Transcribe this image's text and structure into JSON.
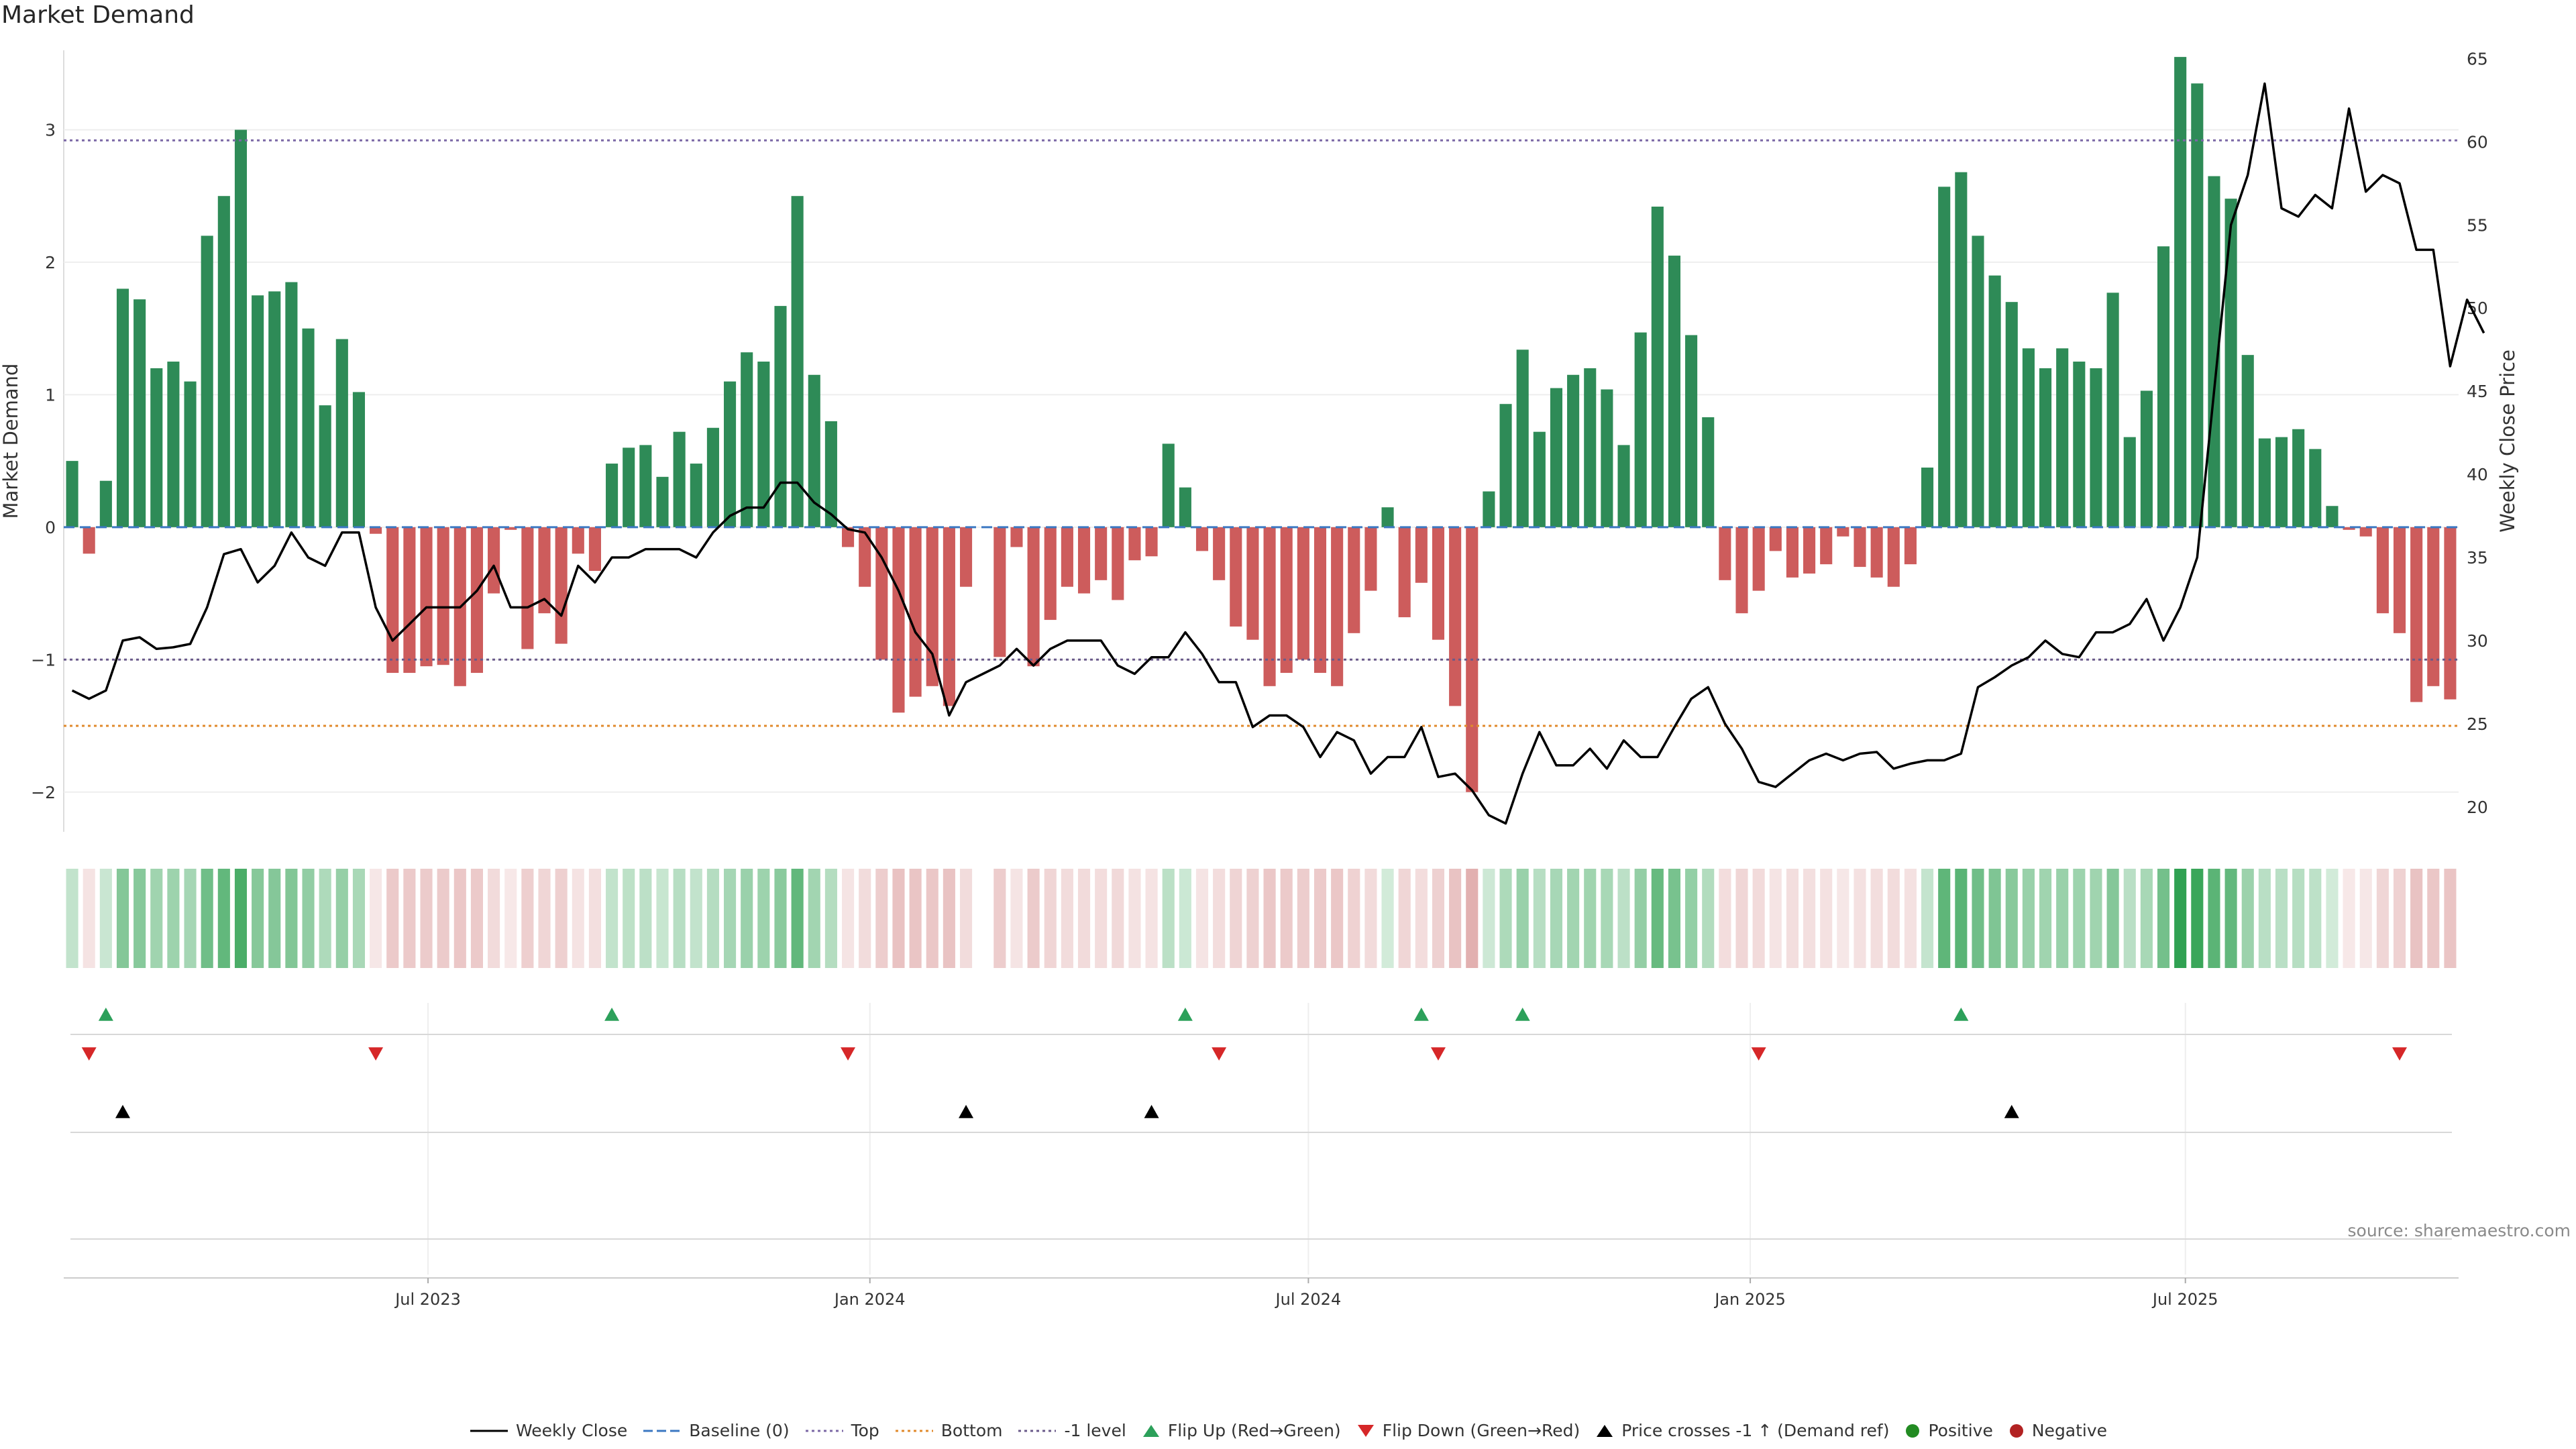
{
  "title": "Market Demand",
  "source": "source: sharemaestro.com",
  "chart_data": {
    "type": "bar",
    "title": "Market Demand",
    "ylabel_left": "Market Demand",
    "ylabel_right": "Weekly Close Price",
    "ylim_left": [
      -2.3,
      3.6
    ],
    "ylim_right": [
      18.5,
      65.5
    ],
    "yticks_left": [
      3,
      2,
      1,
      0,
      -1,
      -2
    ],
    "yticks_left_labels": [
      "3",
      "2",
      "1",
      "0",
      "−1",
      "−2"
    ],
    "yticks_right": [
      65,
      60,
      55,
      50,
      45,
      40,
      35,
      30,
      25,
      20
    ],
    "x_tick_labels": [
      "Jul 2023",
      "Jan 2024",
      "Jul 2024",
      "Jan 2025",
      "Jul 2025"
    ],
    "x_tick_index": [
      21.6,
      47.8,
      73.8,
      100.0,
      125.8
    ],
    "start_week": "2023-02-10",
    "levels": {
      "top": 2.92,
      "bottom": -1.5,
      "minus_one": -1.0,
      "baseline": 0
    },
    "colors": {
      "positive": "#2e8b57",
      "negative": "#cd5c5c",
      "price": "#000000",
      "top": "#7b68a6",
      "bottom": "#e08a2c",
      "minus_one": "#6a5a8a",
      "baseline": "#3b78c2",
      "flip_up": "#2ca05a",
      "flip_down": "#d62728",
      "cross": "#000000"
    },
    "series": [
      {
        "name": "Market Demand",
        "values": [
          0.5,
          -0.2,
          0.35,
          1.8,
          1.72,
          1.2,
          1.25,
          1.1,
          2.2,
          2.5,
          3.0,
          1.75,
          1.78,
          1.85,
          1.5,
          0.92,
          1.42,
          1.02,
          -0.05,
          -1.1,
          -1.1,
          -1.05,
          -1.04,
          -1.2,
          -1.1,
          -0.5,
          -0.02,
          -0.92,
          -0.65,
          -0.88,
          -0.2,
          -0.33,
          0.48,
          0.6,
          0.62,
          0.38,
          0.72,
          0.48,
          0.75,
          1.1,
          1.32,
          1.25,
          1.67,
          2.5,
          1.15,
          0.8,
          -0.15,
          -0.45,
          -1.0,
          -1.4,
          -1.28,
          -1.2,
          -1.35,
          -0.45,
          null,
          -0.98,
          -0.15,
          -1.05,
          -0.7,
          -0.45,
          -0.5,
          -0.4,
          -0.55,
          -0.25,
          -0.22,
          0.63,
          0.3,
          -0.18,
          -0.4,
          -0.75,
          -0.85,
          -1.2,
          -1.1,
          -1.0,
          -1.1,
          -1.2,
          -0.8,
          -0.48,
          0.15,
          -0.68,
          -0.42,
          -0.85,
          -1.35,
          -2.0,
          0.27,
          0.93,
          1.34,
          0.72,
          1.05,
          1.15,
          1.2,
          1.04,
          0.62,
          1.47,
          2.42,
          2.05,
          1.45,
          0.83,
          -0.4,
          -0.65,
          -0.48,
          -0.18,
          -0.38,
          -0.35,
          -0.28,
          -0.07,
          -0.3,
          -0.38,
          -0.45,
          -0.28,
          0.45,
          2.57,
          2.68,
          2.2,
          1.9,
          1.7,
          1.35,
          1.2,
          1.35,
          1.25,
          1.2,
          1.77,
          0.68,
          1.03,
          2.12,
          3.55,
          3.35,
          2.65,
          2.48,
          1.3,
          0.67,
          0.68,
          0.74,
          0.59,
          0.16,
          -0.02,
          -0.07,
          -0.65,
          -0.8,
          -1.32,
          -1.2,
          -1.3
        ]
      },
      {
        "name": "Weekly Close",
        "values": [
          27.0,
          26.5,
          27.0,
          30.0,
          30.2,
          29.5,
          29.6,
          29.8,
          32.0,
          35.2,
          35.5,
          33.5,
          34.5,
          36.5,
          35.0,
          34.5,
          36.5,
          36.5,
          32.0,
          30.0,
          31.0,
          32.0,
          32.0,
          32.0,
          33.0,
          34.5,
          32.0,
          32.0,
          32.5,
          31.5,
          34.5,
          33.5,
          35.0,
          35.0,
          35.5,
          35.5,
          35.5,
          35.0,
          36.5,
          37.5,
          38.0,
          38.0,
          39.5,
          39.5,
          38.3,
          37.6,
          36.7,
          36.5,
          35.0,
          33.0,
          30.5,
          29.2,
          25.5,
          27.5,
          28.0,
          28.5,
          29.5,
          28.5,
          29.5,
          30.0,
          30.0,
          30.0,
          28.5,
          28.0,
          29.0,
          29.0,
          30.5,
          29.2,
          27.5,
          27.5,
          24.8,
          25.5,
          25.5,
          24.8,
          23.0,
          24.5,
          24.0,
          22.0,
          23.0,
          23.0,
          24.8,
          21.8,
          22.0,
          21.0,
          19.5,
          19.0,
          22.0,
          24.5,
          22.5,
          22.5,
          23.5,
          22.3,
          24.0,
          23.0,
          23.0,
          24.8,
          26.5,
          27.2,
          25.0,
          23.5,
          21.5,
          21.2,
          22.0,
          22.8,
          23.2,
          22.8,
          23.2,
          23.3,
          22.3,
          22.6,
          22.8,
          22.8,
          23.2,
          27.2,
          27.8,
          28.5,
          29.0,
          30.0,
          29.2,
          29.0,
          30.5,
          30.5,
          31.0,
          32.5,
          30.0,
          32.0,
          35.0,
          45.0,
          55.0,
          58.0,
          63.5,
          56.0,
          55.5,
          56.8,
          56.0,
          62.0,
          57.0,
          58.0,
          57.5,
          53.5,
          53.5,
          46.5,
          50.5,
          48.5
        ]
      }
    ],
    "heat_strip": "Signal intensity per week (colour)",
    "markers": {
      "flip_up": [
        2,
        32,
        66,
        80,
        86,
        112
      ],
      "flip_down": [
        1,
        18,
        46,
        68,
        81,
        100,
        138
      ],
      "price_crosses_minus_one": [
        3,
        53,
        64,
        115
      ]
    },
    "legend": {
      "weekly_close": "Weekly Close",
      "baseline": "Baseline (0)",
      "top": "Top",
      "bottom": "Bottom",
      "minus_one": "-1 level",
      "flip_up": "Flip Up (Red→Green)",
      "flip_down": "Flip Down (Green→Red)",
      "cross": "Price crosses -1 ↑ (Demand ref)",
      "positive": "Positive",
      "negative": "Negative"
    }
  }
}
